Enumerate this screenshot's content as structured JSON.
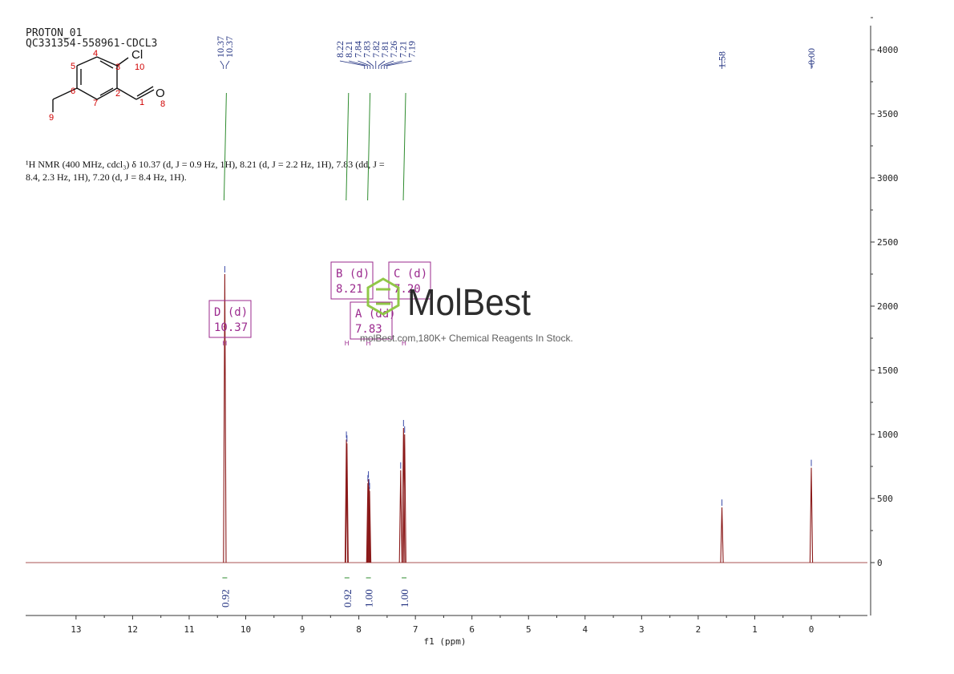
{
  "header": {
    "line1": "PROTON_01",
    "line2": "QC331354-558961-CDCL3"
  },
  "molecule": {
    "atoms": [
      {
        "label": "1",
        "color": "#d00000"
      },
      {
        "label": "2",
        "color": "#d00000"
      },
      {
        "label": "3",
        "color": "#d00000"
      },
      {
        "label": "4",
        "color": "#d00000"
      },
      {
        "label": "5",
        "color": "#d00000"
      },
      {
        "label": "6",
        "color": "#d00000"
      },
      {
        "label": "7",
        "color": "#d00000"
      },
      {
        "label": "8",
        "color": "#d00000"
      },
      {
        "label": "9",
        "color": "#d00000"
      },
      {
        "label": "10",
        "color": "#d00000"
      }
    ],
    "element_cl": "Cl",
    "element_o": "O"
  },
  "description": {
    "line1": "¹H NMR (400 MHz, cdcl₃) δ 10.37 (d, J = 0.9 Hz, 1H), 8.21 (d, J = 2.2 Hz, 1H), 7.83 (dd, J =",
    "line2": "8.4, 2.3 Hz, 1H), 7.20 (d, J = 8.4 Hz, 1H)."
  },
  "watermark": {
    "brand": "MolBest",
    "tagline": "molBest.com,180K+ Chemical Reagents In Stock.",
    "color": "#8cc63f"
  },
  "chart_data": {
    "type": "line",
    "xlabel": "f1 (ppm)",
    "xlim": [
      14.0,
      -1.0
    ],
    "ylim": [
      -400,
      4200
    ],
    "x_ticks": [
      13,
      12,
      11,
      10,
      9,
      8,
      7,
      6,
      5,
      4,
      3,
      2,
      1,
      0
    ],
    "y_ticks": [
      0,
      500,
      1000,
      1500,
      2000,
      2500,
      3000,
      3500,
      4000
    ],
    "x_axis_position": "bottom",
    "y_axis_position": "right",
    "grid": false,
    "spectrum_color": "#8b1a1a",
    "peak_label_color": "#1f2f7f",
    "integral_color": "#2e8b2e",
    "multiplet_color": "#9b2a8e",
    "series": [
      {
        "peaks": [
          {
            "ppm": 10.37,
            "height": 2250
          },
          {
            "ppm": 8.22,
            "height": 960
          },
          {
            "ppm": 8.21,
            "height": 930
          },
          {
            "ppm": 7.84,
            "height": 620
          },
          {
            "ppm": 7.83,
            "height": 650
          },
          {
            "ppm": 7.82,
            "height": 590
          },
          {
            "ppm": 7.81,
            "height": 560
          },
          {
            "ppm": 7.26,
            "height": 720
          },
          {
            "ppm": 7.21,
            "height": 1050
          },
          {
            "ppm": 7.19,
            "height": 1000
          },
          {
            "ppm": 1.58,
            "height": 430
          },
          {
            "ppm": 0.0,
            "height": 740
          }
        ]
      }
    ],
    "peak_labels": [
      {
        "group": [
          "10.37",
          "10.37"
        ],
        "ppm": 10.37
      },
      {
        "group": [
          "8.22",
          "8.21",
          "7.84",
          "7.83",
          "7.82",
          "7.81",
          "7.26",
          "7.21",
          "7.19"
        ],
        "ppm": 7.7
      },
      {
        "group": [
          "1.58"
        ],
        "ppm": 1.58
      },
      {
        "group": [
          "-0.00"
        ],
        "ppm": 0.0
      }
    ],
    "integrals": [
      {
        "value": "0.92",
        "ppm": 10.37
      },
      {
        "value": "0.92",
        "ppm": 8.21
      },
      {
        "value": "1.00",
        "ppm": 7.83
      },
      {
        "value": "1.00",
        "ppm": 7.2
      }
    ],
    "multiplets": [
      {
        "letter": "D (d)",
        "shift": "10.37",
        "ppm": 10.37
      },
      {
        "letter": "B (d)",
        "shift": "8.21",
        "ppm": 8.21
      },
      {
        "letter": "A (dd)",
        "shift": "7.83",
        "ppm": 7.83
      },
      {
        "letter": "C (d)",
        "shift": "7.20",
        "ppm": 7.2
      }
    ]
  }
}
